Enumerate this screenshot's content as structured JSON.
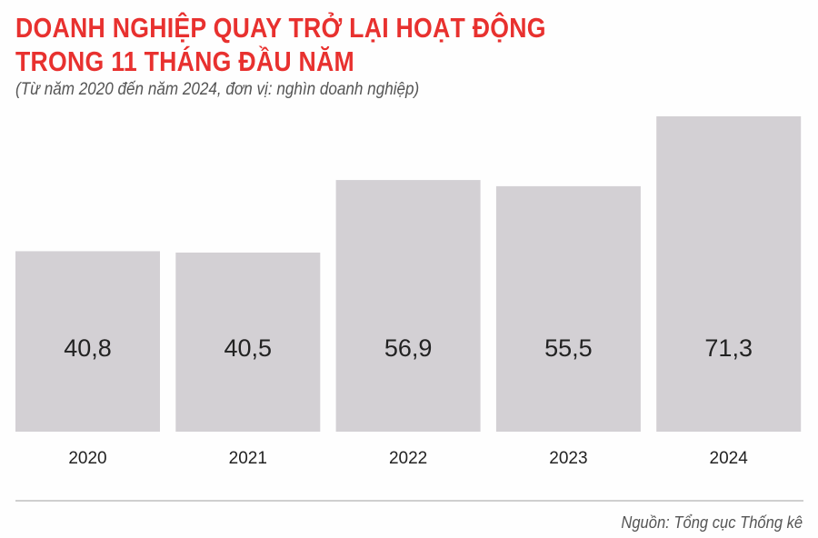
{
  "chart_data": {
    "type": "bar",
    "title": "DOANH NGHIỆP QUAY TRỞ LẠI HOẠT ĐỘNG TRONG 11 THÁNG ĐẦU NĂM",
    "title_lines": [
      "DOANH NGHIỆP QUAY TRỞ LẠI HOẠT ĐỘNG",
      "TRONG 11 THÁNG ĐẦU NĂM"
    ],
    "subtitle": "(Từ năm 2020 đến năm 2024, đơn vị: nghìn doanh nghiệp)",
    "categories": [
      "2020",
      "2021",
      "2022",
      "2023",
      "2024"
    ],
    "values": [
      40.8,
      40.5,
      56.9,
      55.5,
      71.3
    ],
    "value_labels": [
      "40,8",
      "40,5",
      "56,9",
      "55,5",
      "71,3"
    ],
    "ylim": [
      0,
      71.3
    ],
    "grid": false,
    "xlabel": "",
    "ylabel": "",
    "bar_color": "#d3d0d4",
    "title_color": "#e8312f",
    "source": "Nguồn: Tổng cục Thống kê"
  }
}
